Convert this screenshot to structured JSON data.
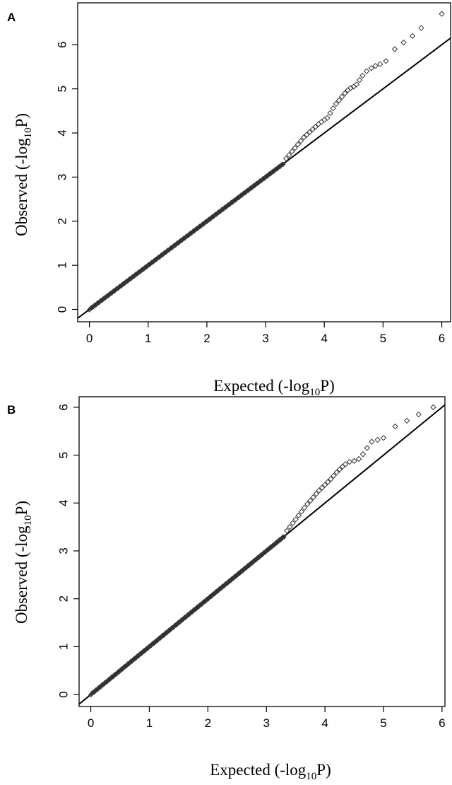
{
  "chart_data": [
    {
      "type": "scatter",
      "panel_label": "A",
      "xlabel": "Expected (-log₁₀P)",
      "ylabel": "Observed (-log₁₀P)",
      "xlabel_parts": [
        "Expected (-log",
        "10",
        "P)"
      ],
      "ylabel_parts": [
        "Observed (-log",
        "10",
        "P)"
      ],
      "xlim": [
        -0.2,
        6.15
      ],
      "ylim": [
        -0.28,
        6.95
      ],
      "xticks": [
        "0",
        "1",
        "2",
        "3",
        "4",
        "5",
        "6"
      ],
      "yticks": [
        "0",
        "1",
        "2",
        "3",
        "4",
        "5",
        "6"
      ],
      "grid": false,
      "reference_line": {
        "slope": 1,
        "intercept": 0
      },
      "diagonal_range": [
        0,
        3.3
      ],
      "points": [
        [
          3.35,
          3.42
        ],
        [
          3.4,
          3.5
        ],
        [
          3.45,
          3.58
        ],
        [
          3.5,
          3.66
        ],
        [
          3.55,
          3.74
        ],
        [
          3.6,
          3.82
        ],
        [
          3.65,
          3.9
        ],
        [
          3.7,
          3.96
        ],
        [
          3.75,
          4.02
        ],
        [
          3.8,
          4.08
        ],
        [
          3.85,
          4.14
        ],
        [
          3.9,
          4.2
        ],
        [
          3.95,
          4.25
        ],
        [
          4.0,
          4.3
        ],
        [
          4.05,
          4.34
        ],
        [
          4.1,
          4.45
        ],
        [
          4.15,
          4.56
        ],
        [
          4.2,
          4.66
        ],
        [
          4.25,
          4.74
        ],
        [
          4.3,
          4.82
        ],
        [
          4.35,
          4.9
        ],
        [
          4.4,
          4.97
        ],
        [
          4.45,
          5.02
        ],
        [
          4.5,
          5.05
        ],
        [
          4.55,
          5.1
        ],
        [
          4.6,
          5.2
        ],
        [
          4.65,
          5.3
        ],
        [
          4.72,
          5.4
        ],
        [
          4.8,
          5.47
        ],
        [
          4.87,
          5.52
        ],
        [
          4.95,
          5.56
        ],
        [
          5.05,
          5.63
        ],
        [
          5.2,
          5.9
        ],
        [
          5.35,
          6.05
        ],
        [
          5.5,
          6.2
        ],
        [
          5.65,
          6.38
        ],
        [
          6.0,
          6.7
        ]
      ]
    },
    {
      "type": "scatter",
      "panel_label": "B",
      "xlabel": "Expected (-log₁₀P)",
      "ylabel": "Observed (-log₁₀P)",
      "xlabel_parts": [
        "Expected (-log",
        "10",
        "P)"
      ],
      "ylabel_parts": [
        "Observed (-log",
        "10",
        "P)"
      ],
      "xlim": [
        -0.2,
        6.05
      ],
      "ylim": [
        -0.25,
        6.22
      ],
      "xticks": [
        "0",
        "1",
        "2",
        "3",
        "4",
        "5",
        "6"
      ],
      "yticks": [
        "0",
        "1",
        "2",
        "3",
        "4",
        "5",
        "6"
      ],
      "grid": false,
      "reference_line": {
        "slope": 1,
        "intercept": 0
      },
      "diagonal_range": [
        0,
        3.3
      ],
      "points": [
        [
          3.35,
          3.42
        ],
        [
          3.4,
          3.5
        ],
        [
          3.45,
          3.58
        ],
        [
          3.5,
          3.66
        ],
        [
          3.55,
          3.74
        ],
        [
          3.6,
          3.82
        ],
        [
          3.65,
          3.9
        ],
        [
          3.7,
          3.98
        ],
        [
          3.75,
          4.05
        ],
        [
          3.8,
          4.12
        ],
        [
          3.85,
          4.19
        ],
        [
          3.9,
          4.26
        ],
        [
          3.95,
          4.32
        ],
        [
          4.0,
          4.38
        ],
        [
          4.05,
          4.44
        ],
        [
          4.1,
          4.5
        ],
        [
          4.15,
          4.57
        ],
        [
          4.2,
          4.64
        ],
        [
          4.25,
          4.7
        ],
        [
          4.3,
          4.76
        ],
        [
          4.35,
          4.81
        ],
        [
          4.42,
          4.86
        ],
        [
          4.5,
          4.88
        ],
        [
          4.58,
          4.92
        ],
        [
          4.65,
          5.02
        ],
        [
          4.72,
          5.15
        ],
        [
          4.8,
          5.28
        ],
        [
          4.9,
          5.32
        ],
        [
          5.0,
          5.36
        ],
        [
          5.2,
          5.6
        ],
        [
          5.4,
          5.72
        ],
        [
          5.6,
          5.85
        ],
        [
          5.85,
          6.0
        ]
      ]
    }
  ]
}
